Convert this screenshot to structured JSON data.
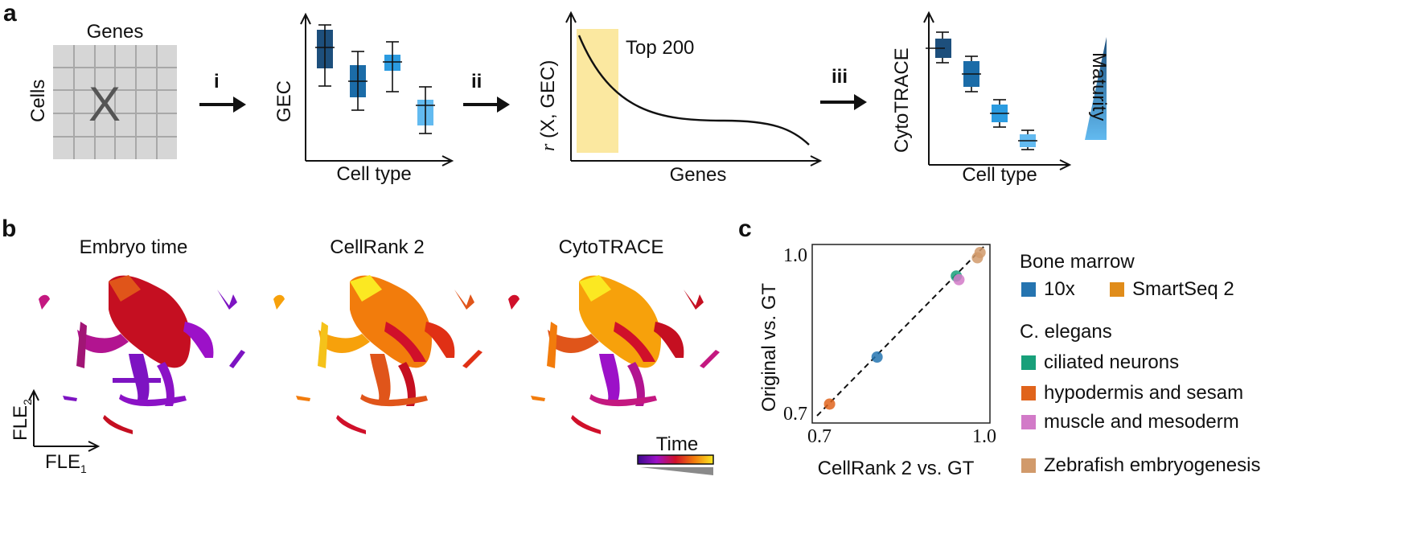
{
  "panel_a": {
    "letter": "a",
    "matrix": {
      "top_label": "Genes",
      "side_label": "Cells",
      "center_label": "X"
    },
    "steps": [
      "i",
      "ii",
      "iii"
    ],
    "gec_plot": {
      "ylabel": "GEC",
      "xlabel": "Cell type"
    },
    "corr_plot": {
      "ylabel_var": "r",
      "ylabel_rest": " (X, GEC)",
      "xlabel": "Genes",
      "highlight_label": "Top 200"
    },
    "cyto_plot": {
      "ylabel": "CytoTRACE",
      "xlabel": "Cell type",
      "maturity_label": "Maturity"
    }
  },
  "panel_b": {
    "letter": "b",
    "titles": [
      "Embryo time",
      "CellRank 2",
      "CytoTRACE"
    ],
    "axes": {
      "y_base": "FLE",
      "y_sub": "2",
      "x_base": "FLE",
      "x_sub": "1"
    },
    "colorbar_label": "Time"
  },
  "panel_c": {
    "letter": "c",
    "chart_data": {
      "type": "scatter",
      "xlabel": "CellRank 2 vs. GT",
      "ylabel": "Original vs. GT",
      "xlim": [
        0.7,
        1.0
      ],
      "ylim": [
        0.7,
        1.0
      ],
      "xticks": [
        "0.7",
        "1.0"
      ],
      "yticks": [
        "1.0",
        "0.7"
      ],
      "series": [
        {
          "name": "10x",
          "color": "#2574b0",
          "x": [
            0.8
          ],
          "y": [
            0.8
          ]
        },
        {
          "name": "SmartSeq 2",
          "color": "#e08c1a",
          "x": [],
          "y": []
        },
        {
          "name": "ciliated neurons",
          "color": "#18a07a",
          "x": [
            0.95
          ],
          "y": [
            0.955
          ]
        },
        {
          "name": "hypodermis and sesam",
          "color": "#e0641c",
          "x": [
            0.71
          ],
          "y": [
            0.71
          ]
        },
        {
          "name": "muscle and mesoderm",
          "color": "#d27ac8",
          "x": [
            0.955
          ],
          "y": [
            0.948
          ]
        },
        {
          "name": "Zebrafish embryogenesis",
          "color": "#d19a6b",
          "x": [
            0.99,
            0.995
          ],
          "y": [
            0.99,
            1.0
          ]
        }
      ]
    },
    "legend": {
      "bone_marrow_header": "Bone marrow",
      "c_elegans_header": "C. elegans",
      "items": [
        {
          "label": "10x",
          "color": "#2574b0"
        },
        {
          "label": "SmartSeq 2",
          "color": "#e08c1a"
        },
        {
          "label": "ciliated neurons",
          "color": "#18a07a"
        },
        {
          "label": "hypodermis and sesam",
          "color": "#e0641c"
        },
        {
          "label": "muscle and mesoderm",
          "color": "#d27ac8"
        },
        {
          "label": "Zebrafish embryogenesis",
          "color": "#d19a6b"
        }
      ]
    }
  }
}
